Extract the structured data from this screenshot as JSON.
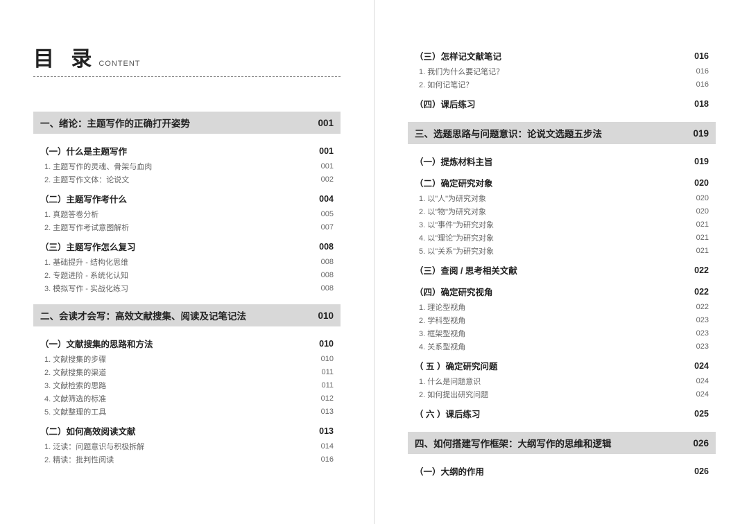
{
  "header": {
    "title_main": "目 录",
    "title_sub": "CONTENT"
  },
  "colors": {
    "chapter_bg": "#d8d8d8",
    "text_primary": "#222222",
    "text_secondary": "#666666",
    "rule": "#888888",
    "page_divider": "#d8d8d8"
  },
  "left": {
    "chapters": [
      {
        "title": "一、绪论：主题写作的正确打开姿势",
        "page": "001",
        "sections": [
          {
            "title": "（一）什么是主题写作",
            "page": "001",
            "subs": [
              {
                "title": "1. 主题写作的灵魂、骨架与血肉",
                "page": "001"
              },
              {
                "title": "2. 主题写作文体：论说文",
                "page": "002"
              }
            ]
          },
          {
            "title": "（二）主题写作考什么",
            "page": "004",
            "subs": [
              {
                "title": "1. 真题答卷分析",
                "page": "005"
              },
              {
                "title": "2. 主题写作考试意图解析",
                "page": "007"
              }
            ]
          },
          {
            "title": "（三）主题写作怎么复习",
            "page": "008",
            "subs": [
              {
                "title": "1. 基础提升 - 结构化思维",
                "page": "008"
              },
              {
                "title": "2. 专题进阶 - 系统化认知",
                "page": "008"
              },
              {
                "title": "3. 模拟写作 - 实战化练习",
                "page": "008"
              }
            ]
          }
        ]
      },
      {
        "title": "二、会读才会写：高效文献搜集、阅读及记笔记法",
        "page": "010",
        "sections": [
          {
            "title": "（一）文献搜集的思路和方法",
            "page": "010",
            "subs": [
              {
                "title": "1. 文献搜集的步骤",
                "page": "010"
              },
              {
                "title": "2. 文献搜集的渠道",
                "page": "011"
              },
              {
                "title": "3. 文献检索的思路",
                "page": "011"
              },
              {
                "title": "4. 文献筛选的标准",
                "page": "012"
              },
              {
                "title": "5. 文献整理的工具",
                "page": "013"
              }
            ]
          },
          {
            "title": "（二）如何高效阅读文献",
            "page": "013",
            "subs": [
              {
                "title": "1. 泛读：问题意识与积极拆解",
                "page": "014"
              },
              {
                "title": "2. 精读：批判性阅读",
                "page": "016"
              }
            ]
          }
        ]
      }
    ]
  },
  "right": {
    "pre_sections": [
      {
        "title": "（三）怎样记文献笔记",
        "page": "016",
        "subs": [
          {
            "title": "1. 我们为什么要记笔记？",
            "page": "016"
          },
          {
            "title": "2. 如何记笔记？",
            "page": "016"
          }
        ]
      },
      {
        "title": "（四）课后练习",
        "page": "018",
        "subs": []
      }
    ],
    "chapters": [
      {
        "title": "三、选题思路与问题意识：论说文选题五步法",
        "page": "019",
        "sections": [
          {
            "title": "（一）提炼材料主旨",
            "page": "019",
            "subs": []
          },
          {
            "title": "（二）确定研究对象",
            "page": "020",
            "subs": [
              {
                "title": "1. 以\"人\"为研究对象",
                "page": "020"
              },
              {
                "title": "2. 以\"物\"为研究对象",
                "page": "020"
              },
              {
                "title": "3. 以\"事件\"为研究对象",
                "page": "021"
              },
              {
                "title": "4. 以\"理论\"为研究对象",
                "page": "021"
              },
              {
                "title": "5. 以\"关系\"为研究对象",
                "page": "021"
              }
            ]
          },
          {
            "title": "（三）查阅 / 思考相关文献",
            "page": "022",
            "subs": []
          },
          {
            "title": "（四）确定研究视角",
            "page": "022",
            "subs": [
              {
                "title": "1. 理论型视角",
                "page": "022"
              },
              {
                "title": "2. 学科型视角",
                "page": "023"
              },
              {
                "title": "3. 框架型视角",
                "page": "023"
              },
              {
                "title": "4. 关系型视角",
                "page": "023"
              }
            ]
          },
          {
            "title": "（ 五 ）确定研究问题",
            "page": "024",
            "subs": [
              {
                "title": "1. 什么是问题意识",
                "page": "024"
              },
              {
                "title": "2. 如何提出研究问题",
                "page": "024"
              }
            ]
          },
          {
            "title": "（ 六 ）课后练习",
            "page": "025",
            "subs": []
          }
        ]
      },
      {
        "title": "四、如何搭建写作框架：大纲写作的思维和逻辑",
        "page": "026",
        "sections": [
          {
            "title": "（一）大纲的作用",
            "page": "026",
            "subs": []
          }
        ]
      }
    ]
  }
}
